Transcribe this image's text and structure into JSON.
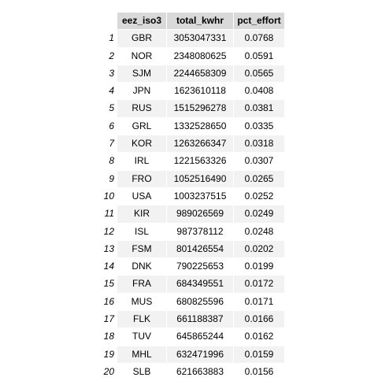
{
  "table": {
    "columns": [
      "eez_iso3",
      "total_kwhr",
      "pct_effort"
    ],
    "rows": [
      {
        "index": "1",
        "eez_iso3": "GBR",
        "total_kwhr": "3053047331",
        "pct_effort": "0.0768"
      },
      {
        "index": "2",
        "eez_iso3": "NOR",
        "total_kwhr": "2348080625",
        "pct_effort": "0.0591"
      },
      {
        "index": "3",
        "eez_iso3": "SJM",
        "total_kwhr": "2244658309",
        "pct_effort": "0.0565"
      },
      {
        "index": "4",
        "eez_iso3": "JPN",
        "total_kwhr": "1623610118",
        "pct_effort": "0.0408"
      },
      {
        "index": "5",
        "eez_iso3": "RUS",
        "total_kwhr": "1515296278",
        "pct_effort": "0.0381"
      },
      {
        "index": "6",
        "eez_iso3": "GRL",
        "total_kwhr": "1332528650",
        "pct_effort": "0.0335"
      },
      {
        "index": "7",
        "eez_iso3": "KOR",
        "total_kwhr": "1263266347",
        "pct_effort": "0.0318"
      },
      {
        "index": "8",
        "eez_iso3": "IRL",
        "total_kwhr": "1221563326",
        "pct_effort": "0.0307"
      },
      {
        "index": "9",
        "eez_iso3": "FRO",
        "total_kwhr": "1052516490",
        "pct_effort": "0.0265"
      },
      {
        "index": "10",
        "eez_iso3": "USA",
        "total_kwhr": "1003237515",
        "pct_effort": "0.0252"
      },
      {
        "index": "11",
        "eez_iso3": "KIR",
        "total_kwhr": "989026569",
        "pct_effort": "0.0249"
      },
      {
        "index": "12",
        "eez_iso3": "ISL",
        "total_kwhr": "987378112",
        "pct_effort": "0.0248"
      },
      {
        "index": "13",
        "eez_iso3": "FSM",
        "total_kwhr": "801426554",
        "pct_effort": "0.0202"
      },
      {
        "index": "14",
        "eez_iso3": "DNK",
        "total_kwhr": "790225653",
        "pct_effort": "0.0199"
      },
      {
        "index": "15",
        "eez_iso3": "FRA",
        "total_kwhr": "684349551",
        "pct_effort": "0.0172"
      },
      {
        "index": "16",
        "eez_iso3": "MUS",
        "total_kwhr": "680825596",
        "pct_effort": "0.0171"
      },
      {
        "index": "17",
        "eez_iso3": "FLK",
        "total_kwhr": "661188387",
        "pct_effort": "0.0166"
      },
      {
        "index": "18",
        "eez_iso3": "TUV",
        "total_kwhr": "645865244",
        "pct_effort": "0.0162"
      },
      {
        "index": "19",
        "eez_iso3": "MHL",
        "total_kwhr": "632471996",
        "pct_effort": "0.0159"
      },
      {
        "index": "20",
        "eez_iso3": "SLB",
        "total_kwhr": "621663883",
        "pct_effort": "0.0156"
      }
    ]
  }
}
